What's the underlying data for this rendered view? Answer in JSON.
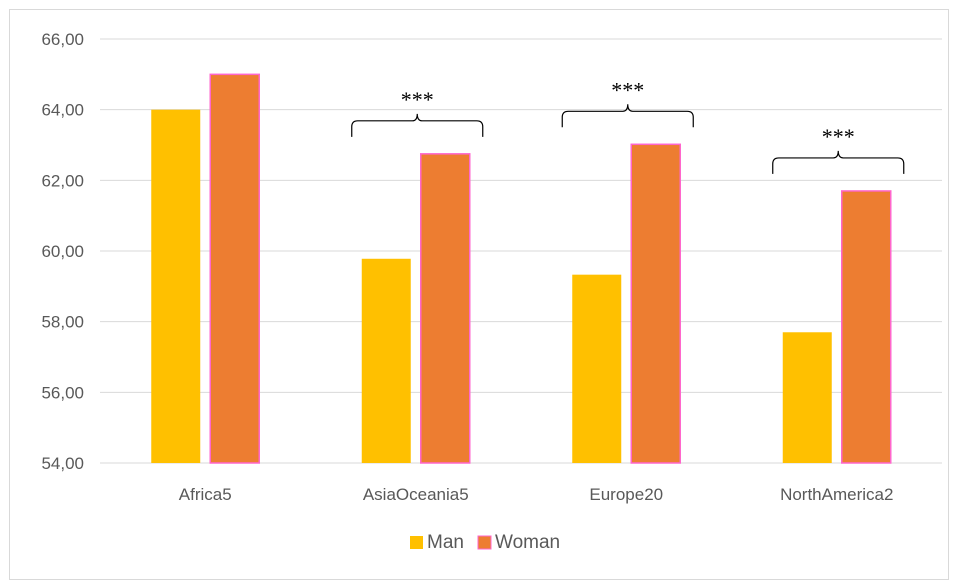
{
  "chart_data": {
    "type": "bar",
    "title": "",
    "xlabel": "",
    "ylabel": "",
    "categories": [
      "Africa5",
      "AsiaOceania5",
      "Europe20",
      "NorthAmerica2"
    ],
    "series": [
      {
        "name": "Man",
        "values": [
          64.0,
          59.78,
          59.33,
          57.7
        ],
        "color": "#FFC000"
      },
      {
        "name": "Woman",
        "values": [
          65.0,
          62.75,
          63.02,
          61.7
        ],
        "color": "#ED7D31",
        "border": "#FF66CC"
      }
    ],
    "ylim": [
      54,
      66
    ],
    "yticks": [
      54,
      56,
      58,
      60,
      62,
      64,
      66
    ],
    "ytick_labels": [
      "54,00",
      "56,00",
      "58,00",
      "60,00",
      "62,00",
      "64,00",
      "66,00"
    ],
    "grid": true,
    "legend_position": "bottom",
    "significance": [
      {
        "category": "AsiaOceania5",
        "label": "***"
      },
      {
        "category": "Europe20",
        "label": "***"
      },
      {
        "category": "NorthAmerica2",
        "label": "***"
      }
    ]
  }
}
